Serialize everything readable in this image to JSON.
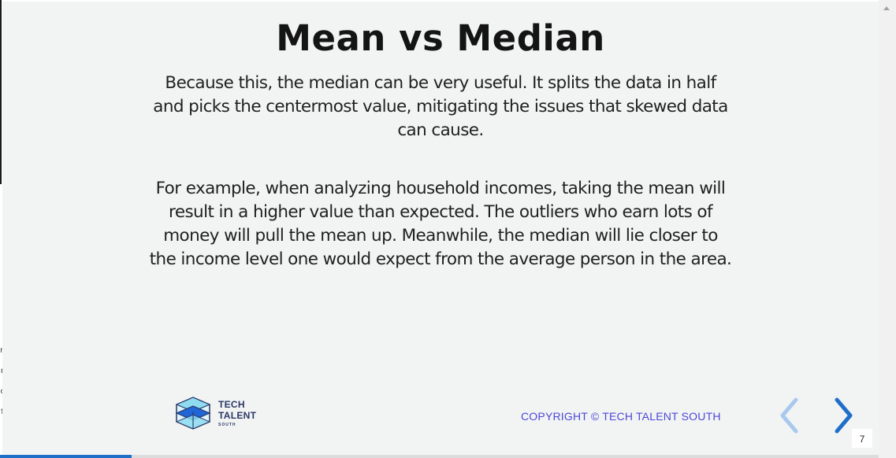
{
  "slide": {
    "title": "Mean vs Median",
    "paragraphs": [
      "Because this, the median can be very useful. It splits the data in half and picks the centermost value, mitigating the issues that skewed data can cause.",
      "For example, when analyzing household incomes, taking the mean will result in a higher value than expected. The outliers who earn lots of money will pull the mean up. Meanwhile, the median will lie closer to the income level one would expect from the average person in the area."
    ],
    "background_color": "#f2f4f4"
  },
  "footer": {
    "logo": {
      "icon": "cube-logo-icon",
      "line1": "TECH",
      "line2": "TALENT",
      "line3": "SOUTH"
    },
    "copyright": "COPYRIGHT © TECH TALENT SOUTH",
    "copyright_color": "#4a48d8"
  },
  "navigation": {
    "prev_icon": "chevron-left-icon",
    "next_icon": "chevron-right-icon",
    "prev_color": "#a9c8ee",
    "next_color": "#1f6fc9",
    "page_number": "7"
  },
  "progress": {
    "fraction": 0.15,
    "color": "#1f6fc9"
  }
}
